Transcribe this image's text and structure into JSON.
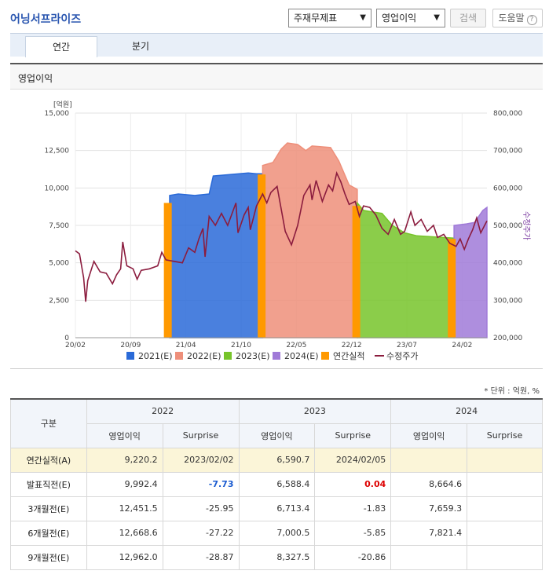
{
  "header": {
    "title": "어닝서프라이즈",
    "select1": "주재무제표",
    "select2": "영업이익",
    "search_label": "검색",
    "help_label": "도움말"
  },
  "tabs": [
    {
      "label": "연간"
    },
    {
      "label": "분기"
    }
  ],
  "section_title": "영업이익",
  "chart_data": {
    "type": "area",
    "left_axis_unit": "[억원]",
    "right_axis_label": "수정주가",
    "left_ylim": [
      0,
      15000
    ],
    "right_ylim": [
      200000,
      800000
    ],
    "left_ticks": [
      "15,000",
      "12,500",
      "10,000",
      "7,500",
      "5,000",
      "2,500",
      "0"
    ],
    "right_ticks": [
      "800,000",
      "700,000",
      "600,000",
      "500,000",
      "400,000",
      "300,000",
      "200,000"
    ],
    "x_ticks": [
      "20/02",
      "20/09",
      "21/04",
      "21/10",
      "22/05",
      "22/12",
      "23/07",
      "24/02"
    ],
    "legend": [
      {
        "label": "2021(E)",
        "color": "#2a6ad8"
      },
      {
        "label": "2022(E)",
        "color": "#ee8f7a"
      },
      {
        "label": "2023(E)",
        "color": "#77c42a"
      },
      {
        "label": "2024(E)",
        "color": "#a07ad8"
      },
      {
        "label": "연간실적",
        "color": "#ff9900"
      },
      {
        "label": "수정주가",
        "color": "#8b1c3e"
      }
    ],
    "grid": true
  },
  "unit_note": "* 단위 : 억원, %",
  "table": {
    "corner": "구분",
    "years": [
      "2022",
      "2023",
      "2024"
    ],
    "sub_headers": [
      "영업이익",
      "Surprise"
    ],
    "rows": [
      {
        "label": "연간실적(A)",
        "cells": [
          "9,220.2",
          "2023/02/02",
          "6,590.7",
          "2024/02/05",
          "",
          ""
        ]
      },
      {
        "label": "발표직전(E)",
        "cells": [
          "9,992.4",
          "-7.73",
          "6,588.4",
          "0.04",
          "8,664.6",
          ""
        ]
      },
      {
        "label": "3개월전(E)",
        "cells": [
          "12,451.5",
          "-25.95",
          "6,713.4",
          "-1.83",
          "7,659.3",
          ""
        ]
      },
      {
        "label": "6개월전(E)",
        "cells": [
          "12,668.6",
          "-27.22",
          "7,000.5",
          "-5.85",
          "7,821.4",
          ""
        ]
      },
      {
        "label": "9개월전(E)",
        "cells": [
          "12,962.0",
          "-28.87",
          "8,327.5",
          "-20.86",
          "",
          ""
        ]
      }
    ]
  }
}
